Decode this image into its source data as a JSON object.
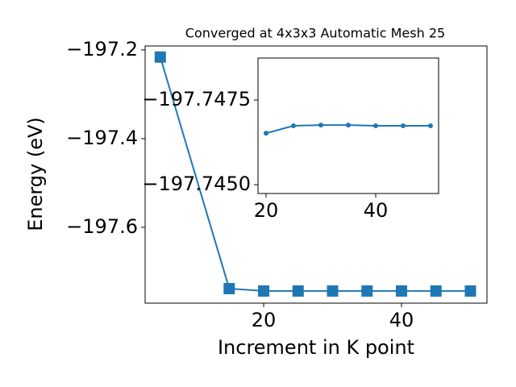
{
  "chart_data": [
    {
      "type": "line",
      "title": "Converged at 4x3x3 Automatic Mesh 25",
      "xlabel": "Increment in K point",
      "ylabel": "Energy (eV)",
      "x": [
        5,
        15,
        20,
        25,
        30,
        35,
        40,
        45,
        50
      ],
      "series": [
        {
          "name": "main",
          "color": "#1f77b4",
          "marker": "square",
          "values": [
            -197.216,
            -197.7382,
            -197.7436,
            -197.7436,
            -197.7436,
            -197.7436,
            -197.7436,
            -197.7436,
            -197.7436
          ]
        }
      ],
      "xlim": [
        2.8,
        52.4
      ],
      "ylim": [
        -197.771,
        -197.191
      ],
      "xticks": [
        20,
        40
      ],
      "yticks": [
        {
          "value": -197.2,
          "label": "−197.2"
        },
        {
          "value": -197.4,
          "label": "−197.4"
        },
        {
          "value": -197.6,
          "label": "−197.6"
        }
      ]
    },
    {
      "type": "line",
      "x": [
        20,
        25,
        30,
        35,
        40,
        45,
        50
      ],
      "series": [
        {
          "name": "inset",
          "color": "#1f77b4",
          "marker": "circle",
          "values": [
            -197.74652,
            -197.74674,
            -197.74676,
            -197.74676,
            -197.74674,
            -197.74674,
            -197.74674
          ]
        }
      ],
      "xlim": [
        18.53,
        51.47
      ],
      "ylim": [
        -197.74474,
        -197.74874
      ],
      "xticks": [
        20,
        40
      ],
      "yticks": [
        {
          "value": -197.7475,
          "label": "−197.7475"
        },
        {
          "value": -197.745,
          "label": "−197.7450"
        }
      ]
    }
  ]
}
